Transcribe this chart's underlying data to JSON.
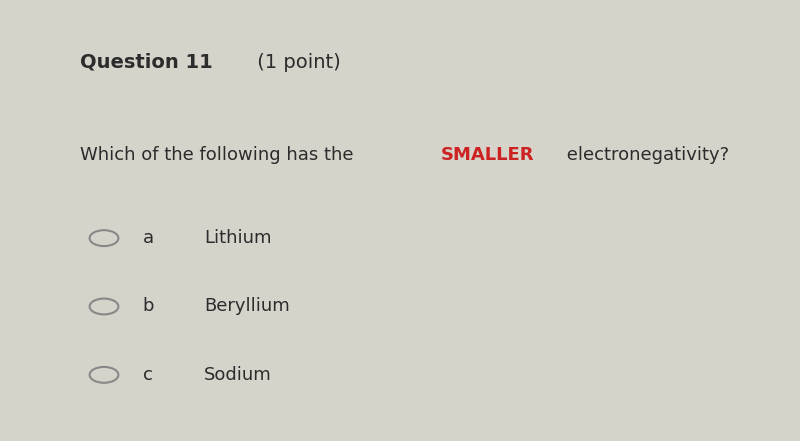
{
  "title_bold": "Question 11",
  "title_normal": " (1 point)",
  "question_prefix": "Which of the following has the ",
  "question_highlight": "SMALLER",
  "question_suffix": " electronegativity?",
  "options": [
    {
      "letter": "a",
      "text": "Lithium"
    },
    {
      "letter": "b",
      "text": "Beryllium"
    },
    {
      "letter": "c",
      "text": "Sodium"
    }
  ],
  "bg_color": "#d6d3cb",
  "text_color": "#2c2c2c",
  "highlight_color": "#cc2222",
  "circle_color": "#888888",
  "title_fontsize": 14,
  "question_fontsize": 13,
  "option_fontsize": 13
}
